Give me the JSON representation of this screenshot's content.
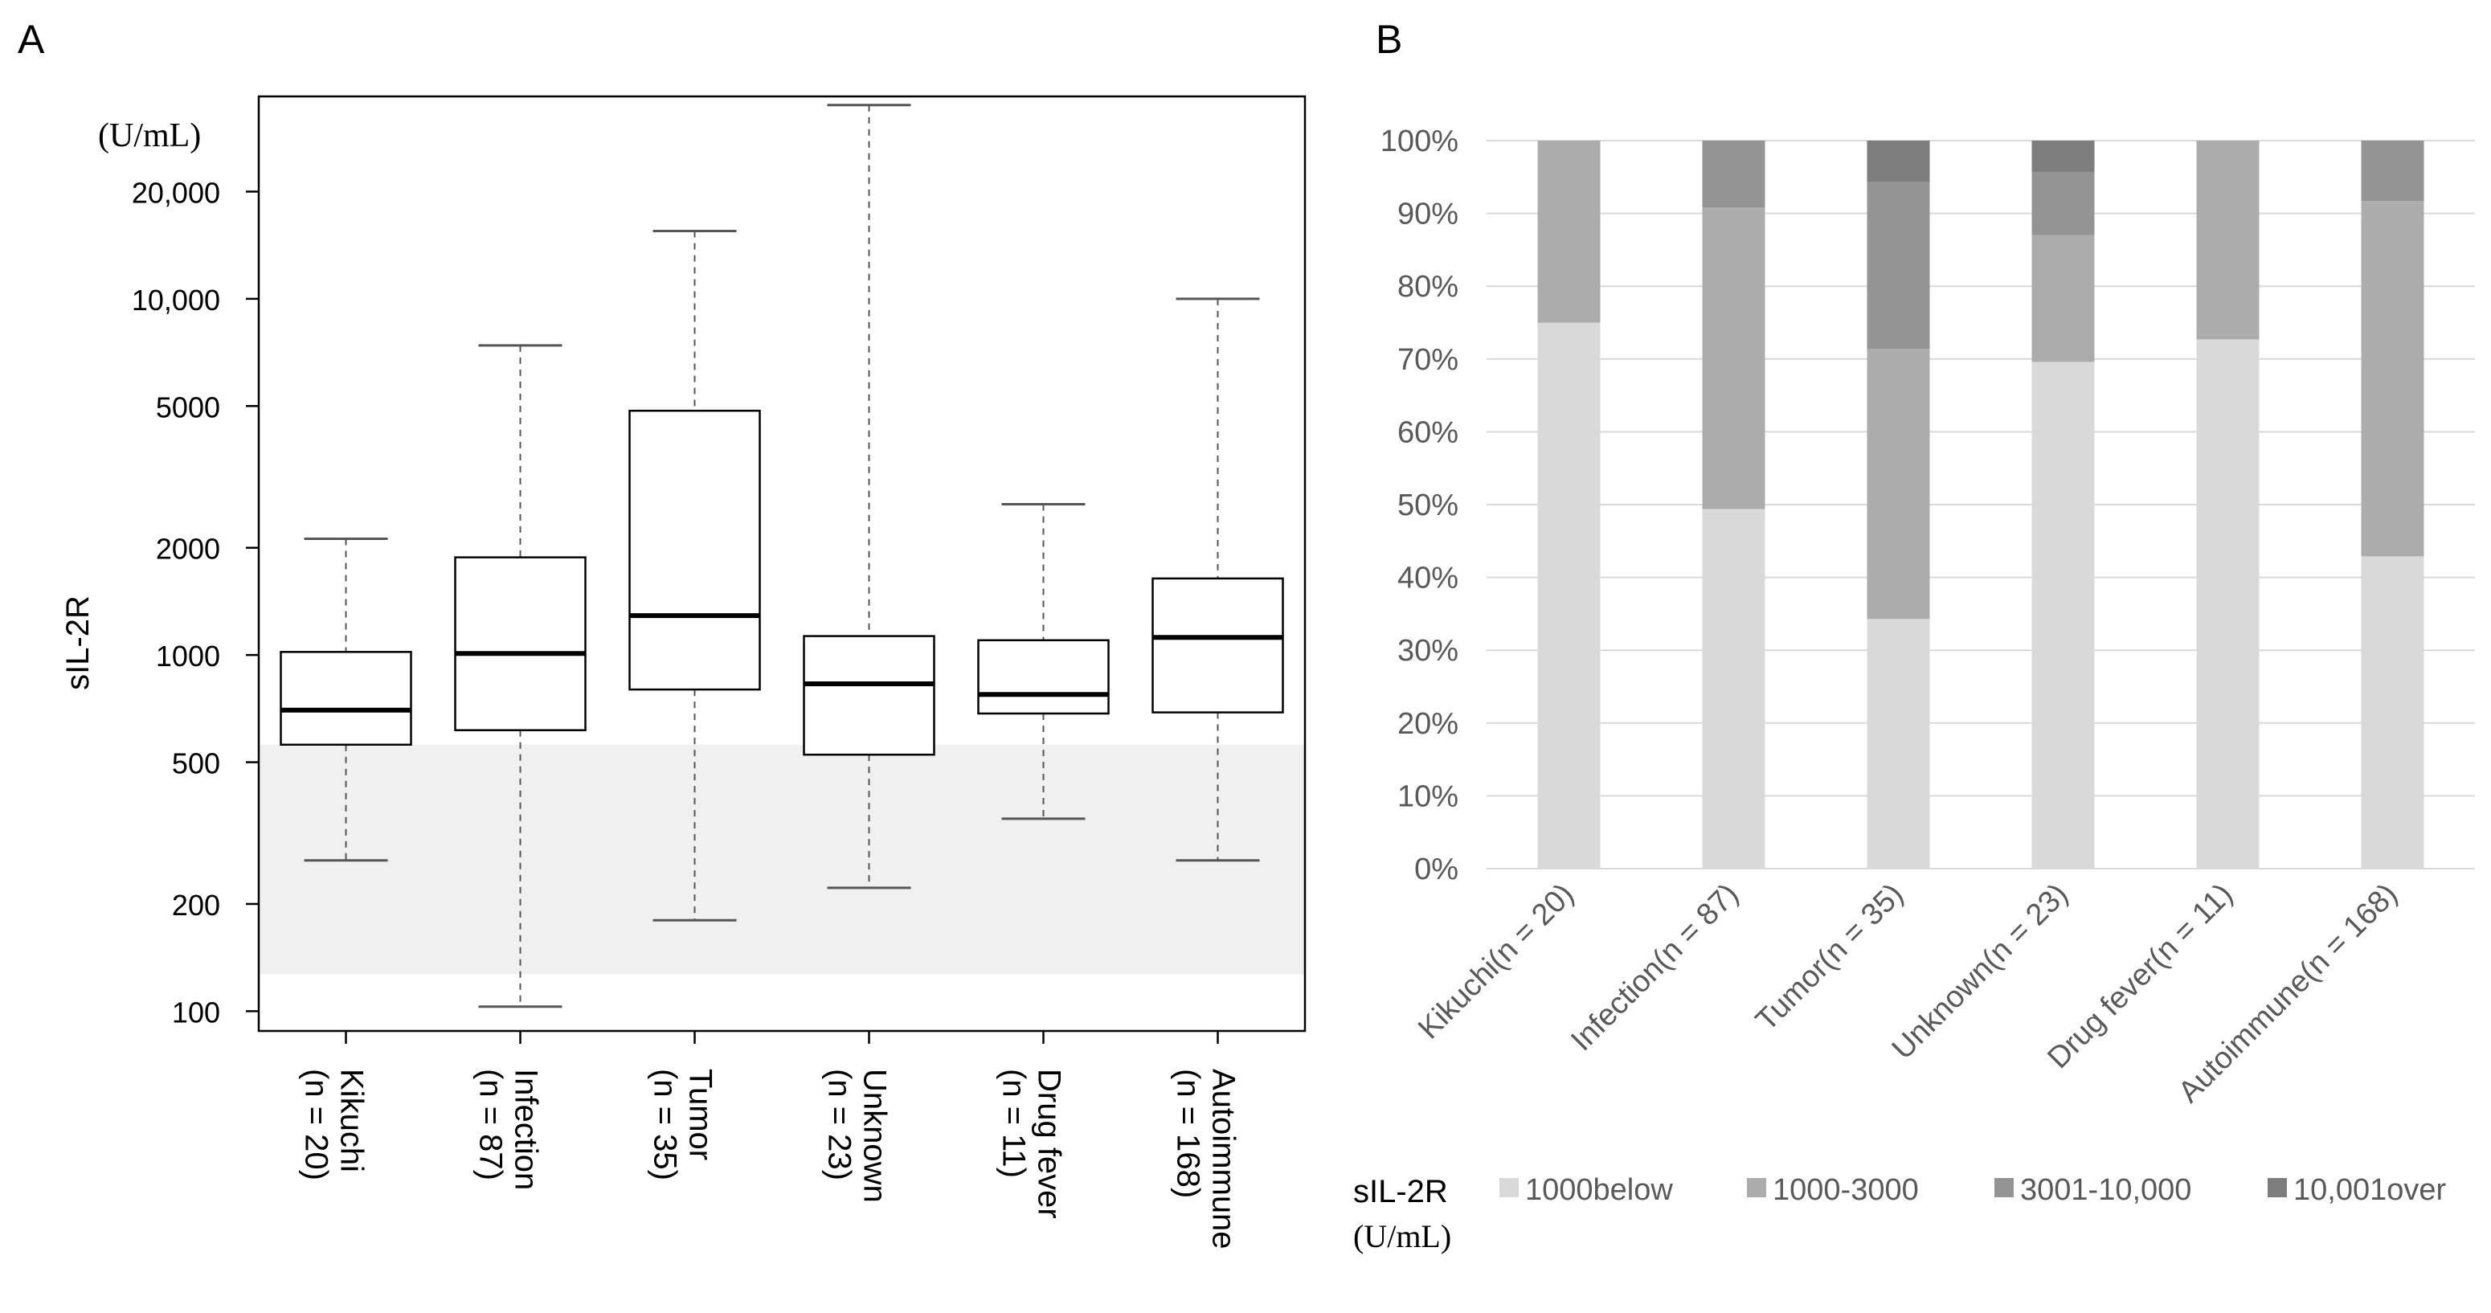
{
  "panel_a_label": "A",
  "panel_b_label": "B",
  "colors": {
    "normal_band": "#f0f0f0",
    "axis": "#000000",
    "whisker": "#555555",
    "b_1000below": "#d9d9d9",
    "b_1000_3000": "#acacac",
    "b_3001_10000": "#949494",
    "b_10001over": "#7d7d7d",
    "b_grid": "#d9d9d9",
    "b_text": "#595959"
  },
  "chart_data": [
    {
      "type": "boxplot",
      "panel": "A",
      "unit_label": "(U/mL)",
      "ylabel": "sIL-2R",
      "yscale": "log",
      "ylim": [
        88,
        37000
      ],
      "yticks": [
        {
          "value": 100,
          "label": "100"
        },
        {
          "value": 200,
          "label": "200"
        },
        {
          "value": 500,
          "label": "500"
        },
        {
          "value": 1000,
          "label": "1000"
        },
        {
          "value": 2000,
          "label": "2000"
        },
        {
          "value": 5000,
          "label": "5000"
        },
        {
          "value": 10000,
          "label": "10,000"
        },
        {
          "value": 20000,
          "label": "20,000"
        }
      ],
      "reference_band": [
        127,
        560
      ],
      "categories": [
        {
          "line1": "Kikuchi",
          "line2": "(n = 20)"
        },
        {
          "line1": "Infection",
          "line2": "(n = 87)"
        },
        {
          "line1": "Tumor",
          "line2": "(n = 35)"
        },
        {
          "line1": "Unknown",
          "line2": "(n = 23)"
        },
        {
          "line1": "Drug fever",
          "line2": "(n = 11)"
        },
        {
          "line1": "Autoimmune",
          "line2": "(n = 168)"
        }
      ],
      "boxes": [
        {
          "min": 265,
          "q1": 560,
          "median": 700,
          "q3": 1020,
          "max": 2120
        },
        {
          "min": 103,
          "q1": 615,
          "median": 1010,
          "q3": 1880,
          "max": 7400
        },
        {
          "min": 180,
          "q1": 800,
          "median": 1290,
          "q3": 4850,
          "max": 15500
        },
        {
          "min": 222,
          "q1": 525,
          "median": 830,
          "q3": 1130,
          "max": 35000
        },
        {
          "min": 347,
          "q1": 685,
          "median": 775,
          "q3": 1100,
          "max": 2650
        },
        {
          "min": 265,
          "q1": 690,
          "median": 1120,
          "q3": 1640,
          "max": 10000
        }
      ]
    },
    {
      "type": "stacked_bar_100",
      "panel": "B",
      "categories": [
        "Kikuchi(n = 20)",
        "Infection(n = 87)",
        "Tumor(n = 35)",
        "Unknown(n = 23)",
        "Drug fever(n = 11)",
        "Autoimmune(n = 168)"
      ],
      "yticks": [
        "0%",
        "10%",
        "20%",
        "30%",
        "40%",
        "50%",
        "60%",
        "70%",
        "80%",
        "90%",
        "100%"
      ],
      "ylim": [
        0,
        100
      ],
      "series": [
        {
          "name": "1000below",
          "values": [
            75,
            49.4,
            34.3,
            69.6,
            72.7,
            42.9
          ]
        },
        {
          "name": "1000-3000",
          "values": [
            25,
            41.4,
            37.1,
            17.4,
            27.3,
            48.8
          ]
        },
        {
          "name": "3001-10,000",
          "values": [
            0,
            9.2,
            22.9,
            8.7,
            0,
            8.3
          ]
        },
        {
          "name": "10,001over",
          "values": [
            0,
            0,
            5.7,
            4.3,
            0,
            0
          ]
        }
      ],
      "legend_title_line1": "sIL-2R",
      "legend_title_line2": "(U/mL)",
      "legend_position": "bottom"
    }
  ]
}
